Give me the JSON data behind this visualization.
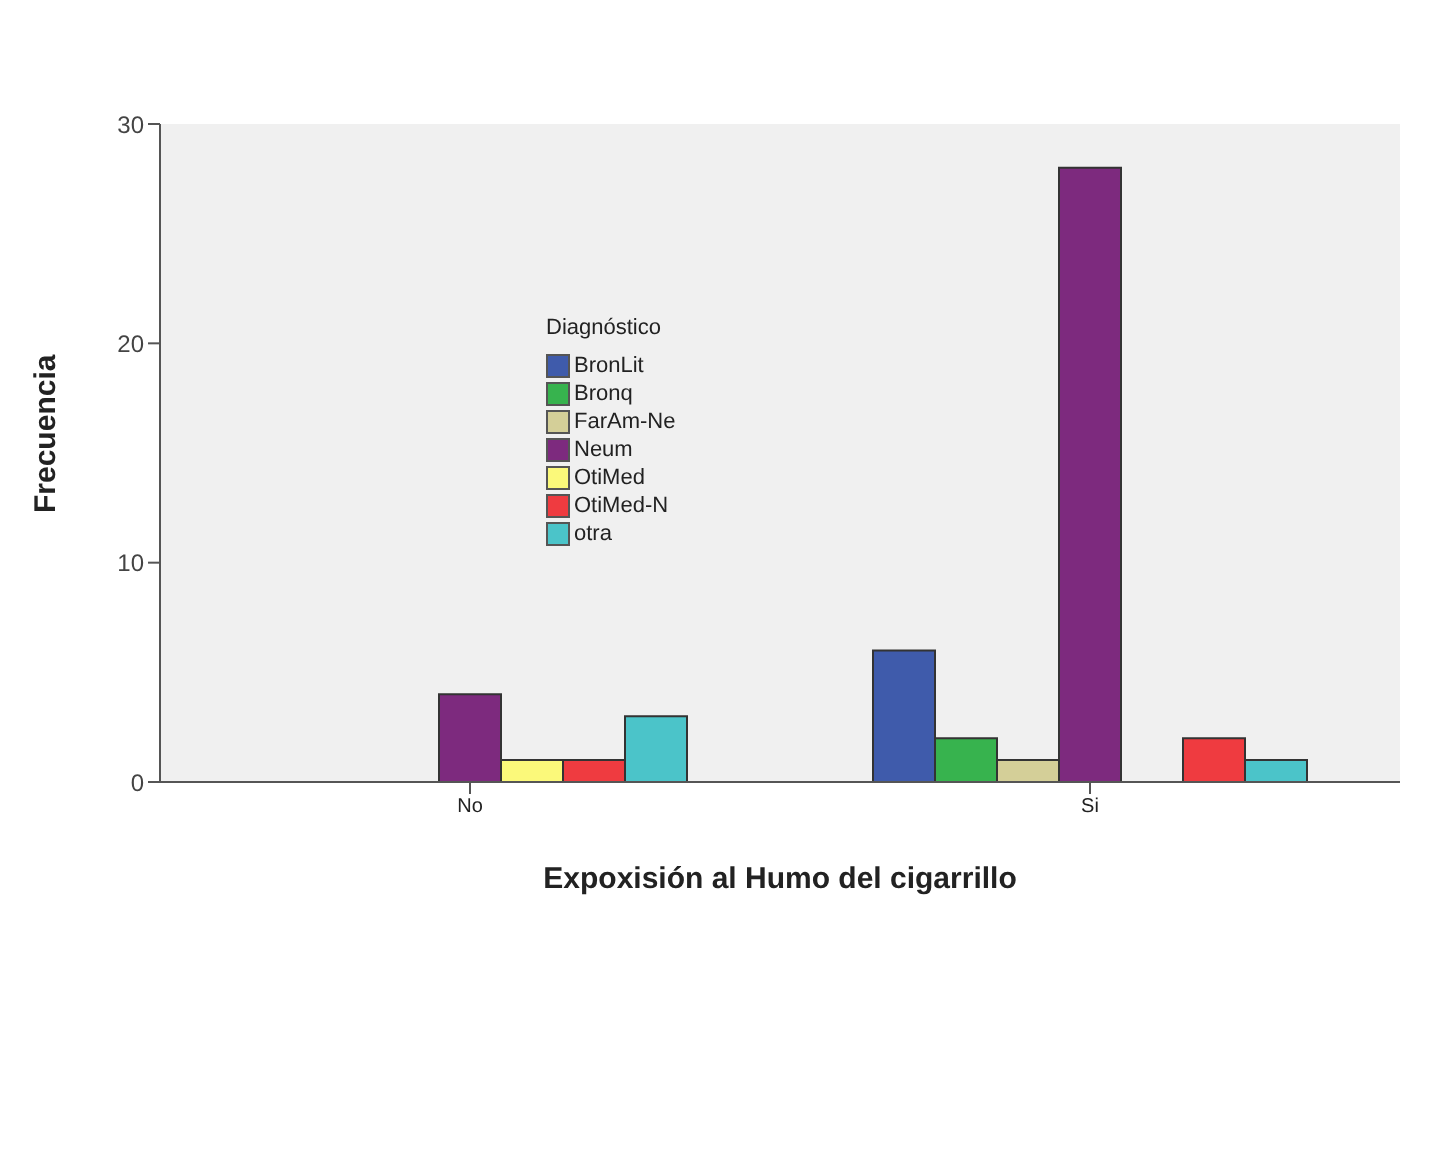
{
  "chart_data": {
    "type": "bar",
    "xlabel": "Expoxisión al Humo del cigarrillo",
    "ylabel": "Frecuencia",
    "legend_title": "Diagnóstico",
    "categories": [
      "No",
      "Si"
    ],
    "series": [
      {
        "name": "BronLit",
        "color": "#3f5bab",
        "values": [
          0,
          6
        ]
      },
      {
        "name": "Bronq",
        "color": "#37b34e",
        "values": [
          0,
          2
        ]
      },
      {
        "name": "FarAm-Ne",
        "color": "#d4cf98",
        "values": [
          0,
          1
        ]
      },
      {
        "name": "Neum",
        "color": "#7d2a7e",
        "values": [
          4,
          28
        ]
      },
      {
        "name": "OtiMed",
        "color": "#fbf97a",
        "values": [
          1,
          0
        ]
      },
      {
        "name": "OtiMed-N",
        "color": "#ef3b40",
        "values": [
          1,
          2
        ]
      },
      {
        "name": "otra",
        "color": "#4bc4c9",
        "values": [
          3,
          1
        ]
      }
    ],
    "ylim": [
      0,
      30
    ],
    "yticks": [
      0,
      10,
      20,
      30
    ],
    "grid": false,
    "legend": "top left"
  }
}
